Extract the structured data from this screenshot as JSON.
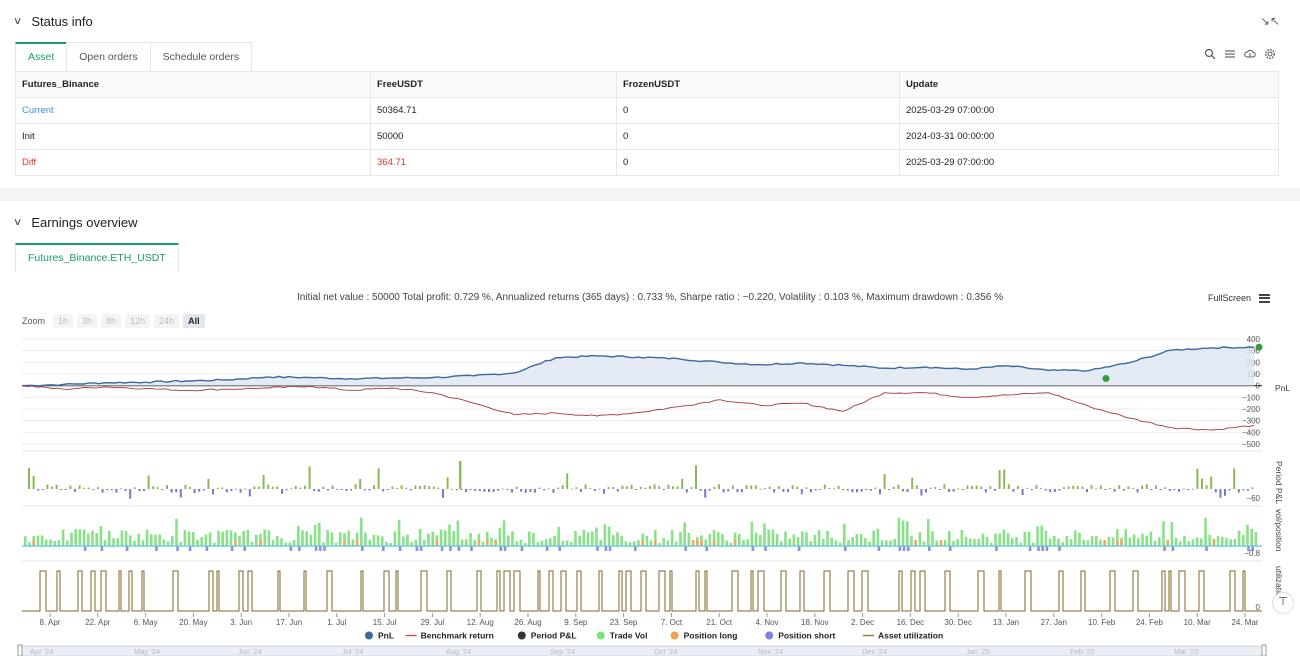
{
  "status": {
    "title": "Status info",
    "tabs": [
      "Asset",
      "Open orders",
      "Schedule orders"
    ],
    "table": {
      "headers": [
        "Futures_Binance",
        "FreeUSDT",
        "FrozenUSDT",
        "Update"
      ],
      "rows": [
        [
          "Current",
          "50364.71",
          "0",
          "2025-03-29 07:00:00"
        ],
        [
          "Init",
          "50000",
          "0",
          "2024-03-31 00:00:00"
        ],
        [
          "Diff",
          "364.71",
          "0",
          "2025-03-29 07:00:00"
        ]
      ]
    }
  },
  "earnings": {
    "title": "Earnings overview",
    "tab": "Futures_Binance.ETH_USDT",
    "summary": "Initial net value : 50000 Total profit: 0.729 %, Annualized returns (365 days) : 0.733 %, Sharpe ratio : −0.220, Volatility : 0.103 %, Maximum drawdown : 0.356 %",
    "fullscreen_label": "FullScreen",
    "zoom_label": "Zoom",
    "zoom_options": [
      "1h",
      "3h",
      "8h",
      "12h",
      "24h",
      "All"
    ],
    "zoom_active": "All"
  },
  "chart_data": {
    "type": "line",
    "x_ticks": [
      "8. Apr",
      "22. Apr",
      "6. May",
      "20. May",
      "3. Jun",
      "17. Jun",
      "1. Jul",
      "15. Jul",
      "29. Jul",
      "12. Aug",
      "26. Aug",
      "9. Sep",
      "23. Sep",
      "7. Oct",
      "21. Oct",
      "4. Nov",
      "18. Nov",
      "2. Dec",
      "16. Dec",
      "30. Dec",
      "13. Jan",
      "27. Jan",
      "10. Feb",
      "24. Feb",
      "10. Mar",
      "24. Mar"
    ],
    "pnl_y_ticks": [
      "400",
      "300",
      "200",
      "100",
      "0",
      "−100",
      "−200",
      "−300",
      "−400",
      "−500"
    ],
    "pnl_ylim": [
      -500,
      400
    ],
    "period_y_ticks": [
      "−60"
    ],
    "vol_y_ticks": [
      "−0.8"
    ],
    "util_y_ticks": [
      "0"
    ],
    "pane_labels": [
      "PnL",
      "Period P&L",
      "vol/position",
      "utilizatio..."
    ],
    "series": [
      {
        "name": "PnL",
        "color": "#3b6aa0",
        "values": [
          0,
          10,
          25,
          30,
          40,
          50,
          75,
          70,
          60,
          65,
          70,
          85,
          110,
          240,
          255,
          245,
          230,
          200,
          180,
          195,
          175,
          150,
          160,
          140,
          170,
          130,
          130,
          200,
          305,
          325,
          330
        ]
      },
      {
        "name": "Benchmark return",
        "color": "#a33a3a",
        "values": [
          0,
          -30,
          -10,
          -25,
          -40,
          -30,
          -20,
          -5,
          -40,
          -20,
          -60,
          -150,
          -250,
          -235,
          -260,
          -230,
          -180,
          -120,
          -170,
          -150,
          -220,
          -60,
          -60,
          -100,
          -80,
          -60,
          -180,
          -280,
          -360,
          -380,
          -340
        ]
      }
    ],
    "legend": [
      {
        "name": "PnL",
        "color": "#3b6aa0",
        "marker": "dot"
      },
      {
        "name": "Benchmark return",
        "color": "#c0504d",
        "marker": "line"
      },
      {
        "name": "Period P&L",
        "color": "#333333",
        "marker": "dot"
      },
      {
        "name": "Trade Vol",
        "color": "#7fe07f",
        "marker": "dot"
      },
      {
        "name": "Position long",
        "color": "#f0a050",
        "marker": "dot"
      },
      {
        "name": "Position short",
        "color": "#8080e0",
        "marker": "dot"
      },
      {
        "name": "Asset utilization",
        "color": "#8a7a40",
        "marker": "line"
      }
    ],
    "navigator_labels": [
      "Apr '24",
      "May '24",
      "Jun '24",
      "Jul '24",
      "Aug '24",
      "Sep '24",
      "Oct '24",
      "Nov '24",
      "Dec '24",
      "Jan '25",
      "Feb '25",
      "Mar '25"
    ]
  }
}
